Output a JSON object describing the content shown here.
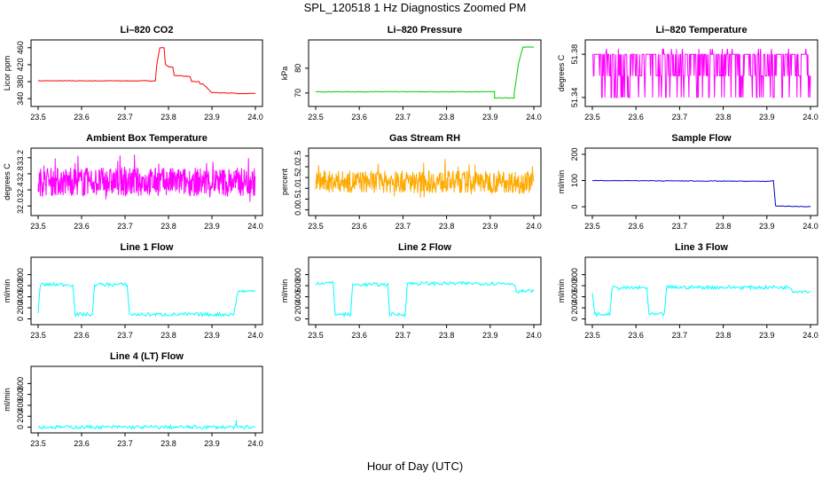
{
  "figure": {
    "title": "SPL_120518  1 Hz Diagnostics Zoomed PM",
    "xlabel": "Hour of Day (UTC)"
  },
  "chart_data": [
    {
      "type": "line",
      "title": "Li–820 CO2",
      "ylabel": "Licor ppm",
      "color": "#ff0000",
      "xlim": [
        23.5,
        24.0
      ],
      "ylim": [
        330,
        470
      ],
      "xticks": [
        "23.5",
        "23.6",
        "23.7",
        "23.8",
        "23.9",
        "24.0"
      ],
      "yticks": [
        340,
        380,
        420,
        460
      ],
      "series": [
        {
          "x": [
            23.5,
            23.77,
            23.773,
            23.78,
            23.79,
            23.793,
            23.8,
            23.81,
            23.813,
            23.85,
            23.853,
            23.87,
            23.873,
            23.88,
            23.9,
            23.95,
            23.96,
            23.97,
            24.0
          ],
          "y": [
            382,
            382,
            420,
            460,
            460,
            420,
            415,
            414,
            395,
            392,
            380,
            380,
            375,
            374,
            354,
            353,
            352,
            352,
            352
          ]
        }
      ]
    },
    {
      "type": "line",
      "title": "Li–820 Pressure",
      "ylabel": "kPa",
      "color": "#00cc00",
      "xlim": [
        23.5,
        24.0
      ],
      "ylim": [
        66,
        90
      ],
      "xticks": [
        "23.5",
        "23.6",
        "23.7",
        "23.8",
        "23.9",
        "24.0"
      ],
      "yticks": [
        70,
        80
      ],
      "series": [
        {
          "x": [
            23.5,
            23.9,
            23.91,
            23.91,
            23.955,
            23.955,
            23.965,
            23.975,
            24.0
          ],
          "y": [
            70.5,
            70.5,
            70.5,
            68,
            68,
            70,
            82,
            88.5,
            88.5
          ]
        }
      ]
    },
    {
      "type": "line",
      "title": "Li–820 Temperature",
      "ylabel": "degrees C",
      "color": "#ff00ff",
      "xlim": [
        23.5,
        24.0
      ],
      "ylim": [
        51.335,
        51.39
      ],
      "xticks": [
        "23.5",
        "23.6",
        "23.7",
        "23.8",
        "23.9",
        "24.0"
      ],
      "yticks": [
        "51.34",
        "51.38"
      ],
      "series": [
        {
          "levels": [
            51.34,
            51.36,
            51.38
          ],
          "pattern": "noise"
        }
      ]
    },
    {
      "type": "line",
      "title": "Ambient Box Temperature",
      "ylabel": "degrees C",
      "color": "#ff00ff",
      "xlim": [
        23.5,
        24.0
      ],
      "ylim": [
        31.85,
        33.35
      ],
      "xticks": [
        "23.5",
        "23.6",
        "23.7",
        "23.8",
        "23.9",
        "24.0"
      ],
      "yticks": [
        "32.0",
        "32.4",
        "32.8",
        "33.2"
      ],
      "series": [
        {
          "mean": 32.6,
          "range": [
            32.0,
            33.3
          ],
          "pattern": "noise"
        }
      ]
    },
    {
      "type": "line",
      "title": "Gas Stream RH",
      "ylabel": "percent",
      "color": "#ffaa00",
      "xlim": [
        23.5,
        24.0
      ],
      "ylim": [
        -0.1,
        2.7
      ],
      "xticks": [
        "23.5",
        "23.6",
        "23.7",
        "23.8",
        "23.9",
        "24.0"
      ],
      "yticks": [
        "0.0",
        "0.5",
        "1.0",
        "1.5",
        "2.0",
        "2.5"
      ],
      "series": [
        {
          "mean": 1.3,
          "range": [
            0.5,
            2.4
          ],
          "pattern": "noise"
        }
      ]
    },
    {
      "type": "line",
      "title": "Sample Flow",
      "ylabel": "ml/min",
      "color": "#0000cc",
      "xlim": [
        23.5,
        24.0
      ],
      "ylim": [
        -20,
        210
      ],
      "xticks": [
        "23.5",
        "23.6",
        "23.7",
        "23.8",
        "23.9",
        "24.0"
      ],
      "yticks": [
        0,
        100,
        200
      ],
      "series": [
        {
          "x": [
            23.5,
            23.91,
            23.915,
            23.92,
            24.0
          ],
          "y": [
            100,
            97,
            100,
            3,
            0
          ]
        }
      ]
    },
    {
      "type": "line",
      "title": "Line 1 Flow",
      "ylabel": "ml/min",
      "color": "#00ffff",
      "xlim": [
        23.5,
        24.0
      ],
      "ylim": [
        -40,
        1050
      ],
      "xticks": [
        "23.5",
        "23.6",
        "23.7",
        "23.8",
        "23.9",
        "24.0"
      ],
      "yticks": [
        0,
        200,
        400,
        600,
        800
      ],
      "series": [
        {
          "x": [
            23.5,
            23.505,
            23.58,
            23.585,
            23.625,
            23.63,
            23.705,
            23.71,
            23.95,
            23.96,
            24.0
          ],
          "y": [
            100,
            620,
            620,
            80,
            80,
            620,
            620,
            80,
            80,
            500,
            500
          ]
        }
      ]
    },
    {
      "type": "line",
      "title": "Line 2 Flow",
      "ylabel": "ml/min",
      "color": "#00ffff",
      "xlim": [
        23.5,
        24.0
      ],
      "ylim": [
        -40,
        1050
      ],
      "xticks": [
        "23.5",
        "23.6",
        "23.7",
        "23.8",
        "23.9",
        "24.0"
      ],
      "yticks": [
        0,
        200,
        400,
        600,
        800
      ],
      "series": [
        {
          "x": [
            23.5,
            23.54,
            23.545,
            23.58,
            23.585,
            23.665,
            23.67,
            23.705,
            23.71,
            23.955,
            23.96,
            24.0
          ],
          "y": [
            650,
            650,
            80,
            80,
            620,
            620,
            80,
            80,
            640,
            640,
            500,
            500
          ]
        }
      ]
    },
    {
      "type": "line",
      "title": "Line 3 Flow",
      "ylabel": "ml/min",
      "color": "#00ffff",
      "xlim": [
        23.5,
        24.0
      ],
      "ylim": [
        -40,
        1050
      ],
      "xticks": [
        "23.5",
        "23.6",
        "23.7",
        "23.8",
        "23.9",
        "24.0"
      ],
      "yticks": [
        0,
        200,
        400,
        600,
        800
      ],
      "series": [
        {
          "x": [
            23.5,
            23.505,
            23.54,
            23.545,
            23.625,
            23.63,
            23.665,
            23.67,
            23.955,
            23.96,
            24.0
          ],
          "y": [
            500,
            80,
            80,
            560,
            560,
            80,
            80,
            570,
            570,
            500,
            500
          ]
        }
      ]
    },
    {
      "type": "line",
      "title": "Line 4 (LT) Flow",
      "ylabel": "ml/min",
      "color": "#00ffff",
      "xlim": [
        23.5,
        24.0
      ],
      "ylim": [
        -40,
        1050
      ],
      "xticks": [
        "23.5",
        "23.6",
        "23.7",
        "23.8",
        "23.9",
        "24.0"
      ],
      "yticks": [
        0,
        200,
        400,
        600,
        800
      ],
      "series": [
        {
          "x": [
            23.5,
            23.955,
            23.956,
            23.958,
            23.96,
            24.0
          ],
          "y": [
            0,
            0,
            100,
            0,
            0,
            0
          ]
        }
      ]
    }
  ]
}
